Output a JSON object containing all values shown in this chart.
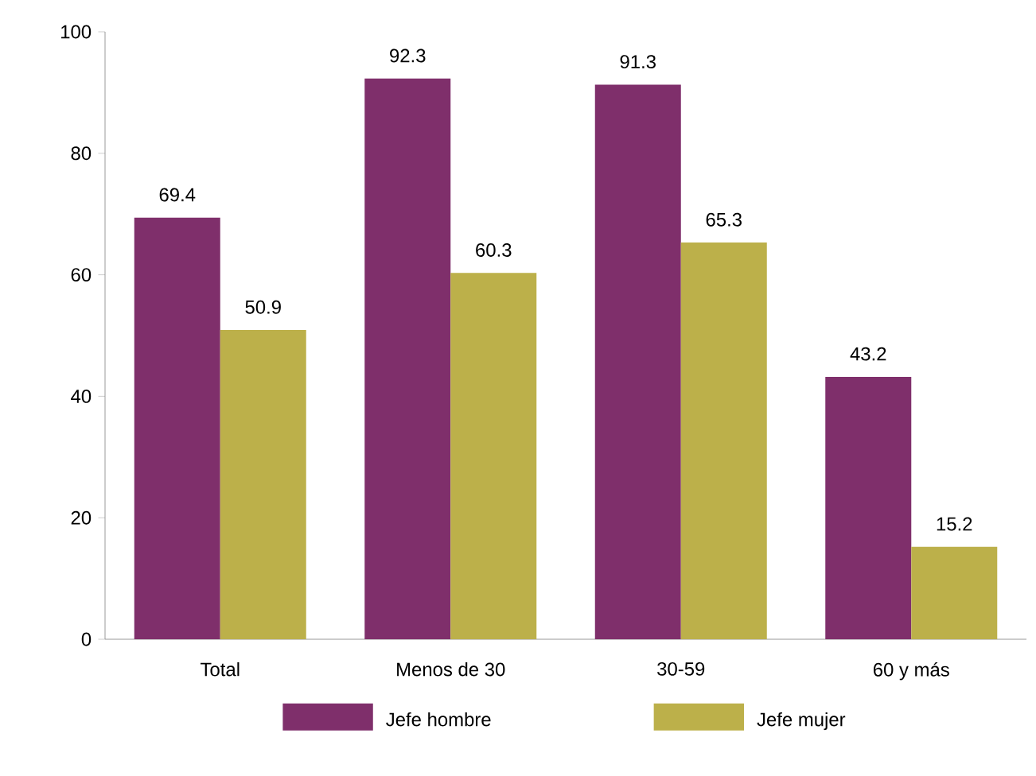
{
  "chart_data": {
    "type": "bar",
    "categories": [
      "Total",
      "Menos de 30",
      "30-59",
      "60 y más"
    ],
    "series": [
      {
        "name": "Jefe hombre",
        "color": "#7f2f6b",
        "values": [
          69.4,
          92.3,
          91.3,
          43.2
        ]
      },
      {
        "name": "Jefe mujer",
        "color": "#bcb04a",
        "values": [
          50.9,
          60.3,
          65.3,
          15.2
        ]
      }
    ],
    "ylim": [
      0,
      100
    ],
    "yticks": [
      0,
      20,
      40,
      60,
      80,
      100
    ],
    "data_labels": true,
    "legend": "bottom",
    "grid": false
  }
}
